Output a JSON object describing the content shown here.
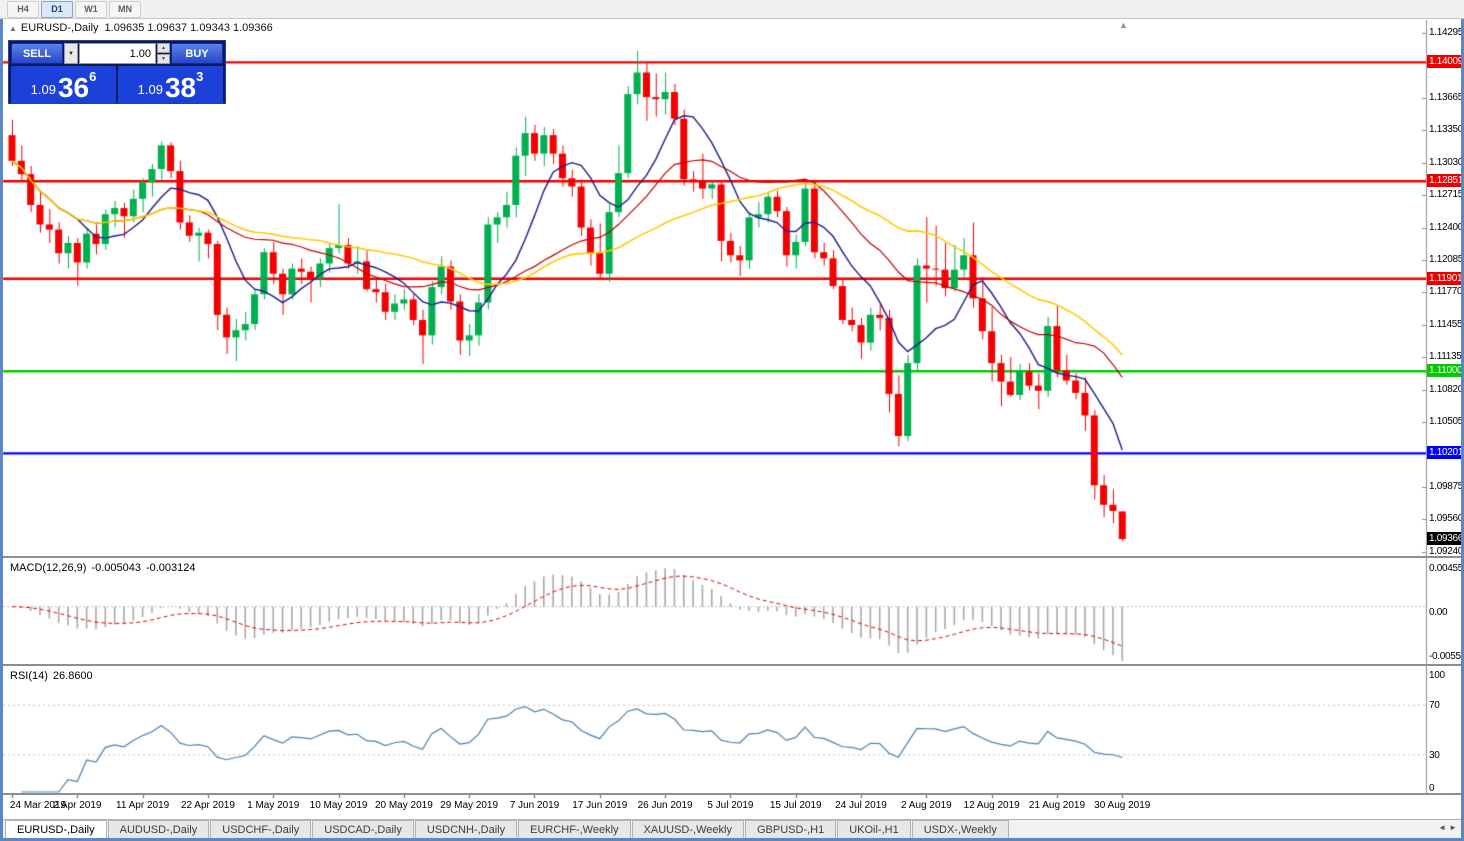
{
  "toolbar": {
    "timeframes": [
      {
        "label": "H4",
        "active": false
      },
      {
        "label": "D1",
        "active": true
      },
      {
        "label": "W1",
        "active": false
      },
      {
        "label": "MN",
        "active": false
      }
    ]
  },
  "icons": {
    "collapse": "▲",
    "dropdown": "▼",
    "spinner_up": "▲",
    "spinner_down": "▼",
    "shift_marker": "▲",
    "tab_scroll_left": "◄",
    "tab_scroll_right": "►"
  },
  "header": {
    "symbol_title": "EURUSD-,Daily",
    "ohlc": "1.09635 1.09637 1.09343 1.09366"
  },
  "trade_panel": {
    "sell_label": "SELL",
    "buy_label": "BUY",
    "volume": "1.00",
    "sell_price": {
      "prefix": "1.09",
      "big": "36",
      "sup": "6"
    },
    "buy_price": {
      "prefix": "1.09",
      "big": "38",
      "sup": "3"
    }
  },
  "colors": {
    "up": "#00B050",
    "down": "#F40000",
    "ma_fast": "#1a1a8c",
    "ma_mid": "#C00000",
    "ma_slow": "#FFCC00",
    "macd_hist": "#A8A8A8",
    "macd_signal": "#E00000",
    "rsi_line": "#4682B4",
    "hline_red": "#EE0000",
    "hline_green": "#00CC00",
    "hline_blue": "#0000FF",
    "current_tag": "#000000",
    "panel_blue": "#1C41D8",
    "accent_button": "#2746C8"
  },
  "chart_data": {
    "type": "candlestick",
    "symbol": "EURUSD",
    "timeframe": "Daily",
    "y_axis": {
      "min": 1.0924,
      "max": 1.14295,
      "ticks": [
        1.14295,
        1.13665,
        1.1335,
        1.1303,
        1.12715,
        1.124,
        1.12085,
        1.1177,
        1.11455,
        1.11135,
        1.1082,
        1.10505,
        1.09875,
        1.0956,
        1.0924
      ]
    },
    "x_labels": [
      "24 Mar 2019",
      "2 Apr 2019",
      "11 Apr 2019",
      "22 Apr 2019",
      "1 May 2019",
      "10 May 2019",
      "20 May 2019",
      "29 May 2019",
      "7 Jun 2019",
      "17 Jun 2019",
      "26 Jun 2019",
      "5 Jul 2019",
      "15 Jul 2019",
      "24 Jul 2019",
      "2 Aug 2019",
      "12 Aug 2019",
      "21 Aug 2019",
      "30 Aug 2019"
    ],
    "x_label_step": 7,
    "hlines": [
      {
        "price": 1.14009,
        "label": "1.14009",
        "color": "#EE0000"
      },
      {
        "price": 1.12851,
        "label": "1.12851",
        "color": "#EE0000"
      },
      {
        "price": 1.11901,
        "label": "1.11901",
        "color": "#EE0000"
      },
      {
        "price": 1.11,
        "label": "1.11000",
        "color": "#00CC00"
      },
      {
        "price": 1.10201,
        "label": "1.10201",
        "color": "#0000FF"
      }
    ],
    "current_price": {
      "value": 1.09366,
      "label": "1.09366",
      "color": "#000000"
    },
    "moving_averages": [
      {
        "name": "fast",
        "period": 8,
        "color": "#1a1a8c",
        "width": 1.4
      },
      {
        "name": "medium",
        "period": 21,
        "color": "#C00000",
        "width": 1.2
      },
      {
        "name": "slow",
        "period": 34,
        "color": "#FFCC00",
        "width": 1.6
      }
    ],
    "macd": {
      "title": "MACD(12,26,9)",
      "value_main": "-0.005043",
      "value_signal": "-0.003124",
      "fast": 12,
      "slow": 26,
      "signal": 9,
      "scale_labels": [
        {
          "value": 0.00455,
          "label": "0.00455"
        },
        {
          "value": 0,
          "label": "0.00"
        },
        {
          "value": -0.0055,
          "label": "-0.0055"
        }
      ],
      "range": [
        -0.0055,
        0.00455
      ]
    },
    "rsi": {
      "title": "RSI(14)",
      "value": "26.8600",
      "period": 14,
      "scale_labels": [
        {
          "value": 100,
          "label": "100"
        },
        {
          "value": 70,
          "label": "70"
        },
        {
          "value": 30,
          "label": "30"
        },
        {
          "value": 0,
          "label": "0"
        }
      ],
      "levels": [
        70,
        30
      ]
    },
    "candles": [
      [
        1.133,
        1.1345,
        1.13,
        1.1305
      ],
      [
        1.1305,
        1.132,
        1.1285,
        1.1292
      ],
      [
        1.1292,
        1.13,
        1.1255,
        1.1262
      ],
      [
        1.1262,
        1.1275,
        1.1235,
        1.1243
      ],
      [
        1.1243,
        1.1258,
        1.1225,
        1.1238
      ],
      [
        1.1238,
        1.1245,
        1.1205,
        1.1215
      ],
      [
        1.1215,
        1.1232,
        1.12,
        1.1225
      ],
      [
        1.1225,
        1.123,
        1.1183,
        1.1206
      ],
      [
        1.1206,
        1.124,
        1.12,
        1.1234
      ],
      [
        1.1234,
        1.1243,
        1.1214,
        1.1224
      ],
      [
        1.1224,
        1.1258,
        1.1218,
        1.1253
      ],
      [
        1.1253,
        1.1266,
        1.124,
        1.1259
      ],
      [
        1.1259,
        1.1264,
        1.123,
        1.1251
      ],
      [
        1.1251,
        1.1277,
        1.1245,
        1.1268
      ],
      [
        1.1268,
        1.1288,
        1.1255,
        1.1284
      ],
      [
        1.1284,
        1.1302,
        1.127,
        1.1297
      ],
      [
        1.1297,
        1.1324,
        1.1285,
        1.132
      ],
      [
        1.132,
        1.1323,
        1.1288,
        1.1295
      ],
      [
        1.1295,
        1.1305,
        1.1238,
        1.1245
      ],
      [
        1.1245,
        1.1252,
        1.1226,
        1.1232
      ],
      [
        1.1232,
        1.124,
        1.1207,
        1.1235
      ],
      [
        1.1235,
        1.1238,
        1.121,
        1.1224
      ],
      [
        1.1224,
        1.1227,
        1.114,
        1.1155
      ],
      [
        1.1155,
        1.1162,
        1.1117,
        1.1133
      ],
      [
        1.1133,
        1.1151,
        1.111,
        1.114
      ],
      [
        1.114,
        1.1158,
        1.113,
        1.1146
      ],
      [
        1.1146,
        1.118,
        1.114,
        1.1175
      ],
      [
        1.1175,
        1.122,
        1.117,
        1.1216
      ],
      [
        1.1216,
        1.1226,
        1.1185,
        1.1195
      ],
      [
        1.1195,
        1.12,
        1.1155,
        1.1175
      ],
      [
        1.1175,
        1.1205,
        1.117,
        1.12
      ],
      [
        1.12,
        1.121,
        1.1185,
        1.1197
      ],
      [
        1.1197,
        1.1202,
        1.1167,
        1.119
      ],
      [
        1.119,
        1.121,
        1.1182,
        1.1205
      ],
      [
        1.1205,
        1.1225,
        1.1196,
        1.122
      ],
      [
        1.122,
        1.1263,
        1.1215,
        1.1223
      ],
      [
        1.1223,
        1.123,
        1.12,
        1.1205
      ],
      [
        1.1205,
        1.1222,
        1.1195,
        1.1207
      ],
      [
        1.1207,
        1.1218,
        1.1178,
        1.118
      ],
      [
        1.118,
        1.119,
        1.1167,
        1.1177
      ],
      [
        1.1177,
        1.1185,
        1.115,
        1.1158
      ],
      [
        1.1158,
        1.1175,
        1.115,
        1.1166
      ],
      [
        1.1166,
        1.118,
        1.116,
        1.117
      ],
      [
        1.117,
        1.1175,
        1.1145,
        1.115
      ],
      [
        1.115,
        1.116,
        1.1107,
        1.1135
      ],
      [
        1.1135,
        1.1188,
        1.1126,
        1.1182
      ],
      [
        1.1182,
        1.1212,
        1.1175,
        1.1202
      ],
      [
        1.1202,
        1.1208,
        1.116,
        1.1168
      ],
      [
        1.1168,
        1.1175,
        1.1116,
        1.113
      ],
      [
        1.113,
        1.1146,
        1.1115,
        1.1135
      ],
      [
        1.1135,
        1.1175,
        1.1125,
        1.1167
      ],
      [
        1.1167,
        1.125,
        1.116,
        1.1243
      ],
      [
        1.1243,
        1.1255,
        1.1225,
        1.125
      ],
      [
        1.125,
        1.1275,
        1.124,
        1.1262
      ],
      [
        1.1262,
        1.1318,
        1.125,
        1.131
      ],
      [
        1.131,
        1.1348,
        1.129,
        1.1332
      ],
      [
        1.1332,
        1.134,
        1.1305,
        1.1312
      ],
      [
        1.1312,
        1.1338,
        1.13,
        1.133
      ],
      [
        1.133,
        1.1336,
        1.1302,
        1.1312
      ],
      [
        1.1312,
        1.132,
        1.128,
        1.1288
      ],
      [
        1.1288,
        1.1296,
        1.127,
        1.128
      ],
      [
        1.128,
        1.1287,
        1.1232,
        1.124
      ],
      [
        1.124,
        1.1248,
        1.1203,
        1.1215
      ],
      [
        1.1215,
        1.1244,
        1.119,
        1.1195
      ],
      [
        1.1195,
        1.1263,
        1.1187,
        1.1255
      ],
      [
        1.1255,
        1.132,
        1.125,
        1.1293
      ],
      [
        1.1293,
        1.1378,
        1.1288,
        1.137
      ],
      [
        1.137,
        1.1412,
        1.136,
        1.1391
      ],
      [
        1.1391,
        1.14,
        1.1344,
        1.1367
      ],
      [
        1.1367,
        1.139,
        1.1348,
        1.1365
      ],
      [
        1.1365,
        1.1391,
        1.135,
        1.1372
      ],
      [
        1.1372,
        1.138,
        1.134,
        1.1346
      ],
      [
        1.1346,
        1.1355,
        1.1281,
        1.1287
      ],
      [
        1.1287,
        1.1295,
        1.1275,
        1.1285
      ],
      [
        1.1285,
        1.1312,
        1.1268,
        1.1278
      ],
      [
        1.1278,
        1.1285,
        1.1268,
        1.1282
      ],
      [
        1.1282,
        1.1286,
        1.1207,
        1.1227
      ],
      [
        1.1227,
        1.1235,
        1.1206,
        1.1213
      ],
      [
        1.1213,
        1.1222,
        1.1193,
        1.1208
      ],
      [
        1.1208,
        1.1255,
        1.12,
        1.125
      ],
      [
        1.125,
        1.1265,
        1.124,
        1.1253
      ],
      [
        1.1253,
        1.1275,
        1.1245,
        1.127
      ],
      [
        1.127,
        1.1276,
        1.125,
        1.1256
      ],
      [
        1.1256,
        1.126,
        1.1202,
        1.1213
      ],
      [
        1.1213,
        1.1233,
        1.12,
        1.1226
      ],
      [
        1.1226,
        1.1282,
        1.1222,
        1.1278
      ],
      [
        1.1278,
        1.1284,
        1.121,
        1.1216
      ],
      [
        1.1216,
        1.1225,
        1.1203,
        1.121
      ],
      [
        1.121,
        1.1218,
        1.118,
        1.1183
      ],
      [
        1.1183,
        1.119,
        1.1146,
        1.115
      ],
      [
        1.115,
        1.1162,
        1.1139,
        1.1145
      ],
      [
        1.1145,
        1.1152,
        1.1112,
        1.1128
      ],
      [
        1.1128,
        1.1162,
        1.112,
        1.1155
      ],
      [
        1.1155,
        1.1165,
        1.114,
        1.1152
      ],
      [
        1.1152,
        1.116,
        1.106,
        1.1078
      ],
      [
        1.1078,
        1.1096,
        1.1027,
        1.1037
      ],
      [
        1.1037,
        1.1116,
        1.1032,
        1.1108
      ],
      [
        1.1108,
        1.121,
        1.1101,
        1.1203
      ],
      [
        1.1203,
        1.125,
        1.1167,
        1.12
      ],
      [
        1.12,
        1.1242,
        1.1183,
        1.1199
      ],
      [
        1.1199,
        1.1225,
        1.1173,
        1.1181
      ],
      [
        1.1181,
        1.1223,
        1.1178,
        1.1199
      ],
      [
        1.1199,
        1.123,
        1.1192,
        1.1213
      ],
      [
        1.1213,
        1.1245,
        1.1162,
        1.1171
      ],
      [
        1.1171,
        1.1192,
        1.1131,
        1.1139
      ],
      [
        1.1139,
        1.1163,
        1.109,
        1.1108
      ],
      [
        1.1108,
        1.1116,
        1.1066,
        1.109
      ],
      [
        1.109,
        1.1114,
        1.1075,
        1.1077
      ],
      [
        1.1077,
        1.1107,
        1.1072,
        1.11
      ],
      [
        1.11,
        1.1108,
        1.1081,
        1.1086
      ],
      [
        1.1086,
        1.1098,
        1.1063,
        1.1081
      ],
      [
        1.1081,
        1.1153,
        1.1075,
        1.1144
      ],
      [
        1.1144,
        1.1164,
        1.1094,
        1.1101
      ],
      [
        1.1101,
        1.1116,
        1.1087,
        1.1091
      ],
      [
        1.1091,
        1.1098,
        1.1073,
        1.1079
      ],
      [
        1.1079,
        1.1094,
        1.1042,
        1.1057
      ],
      [
        1.1057,
        1.1062,
        1.0975,
        1.0989
      ],
      [
        1.0989,
        1.0999,
        1.0958,
        1.097
      ],
      [
        1.097,
        1.0985,
        1.0952,
        1.0964
      ],
      [
        1.09635,
        1.09637,
        1.09343,
        1.09366
      ]
    ]
  },
  "tabs": {
    "items": [
      {
        "label": "EURUSD-,Daily",
        "active": true
      },
      {
        "label": "AUDUSD-,Daily",
        "active": false
      },
      {
        "label": "USDCHF-,Daily",
        "active": false
      },
      {
        "label": "USDCAD-,Daily",
        "active": false
      },
      {
        "label": "USDCNH-,Daily",
        "active": false
      },
      {
        "label": "EURCHF-,Weekly",
        "active": false
      },
      {
        "label": "XAUUSD-,Weekly",
        "active": false
      },
      {
        "label": "GBPUSD-,H1",
        "active": false
      },
      {
        "label": "UKOil-,H1",
        "active": false
      },
      {
        "label": "USDX-,Weekly",
        "active": false
      }
    ]
  }
}
